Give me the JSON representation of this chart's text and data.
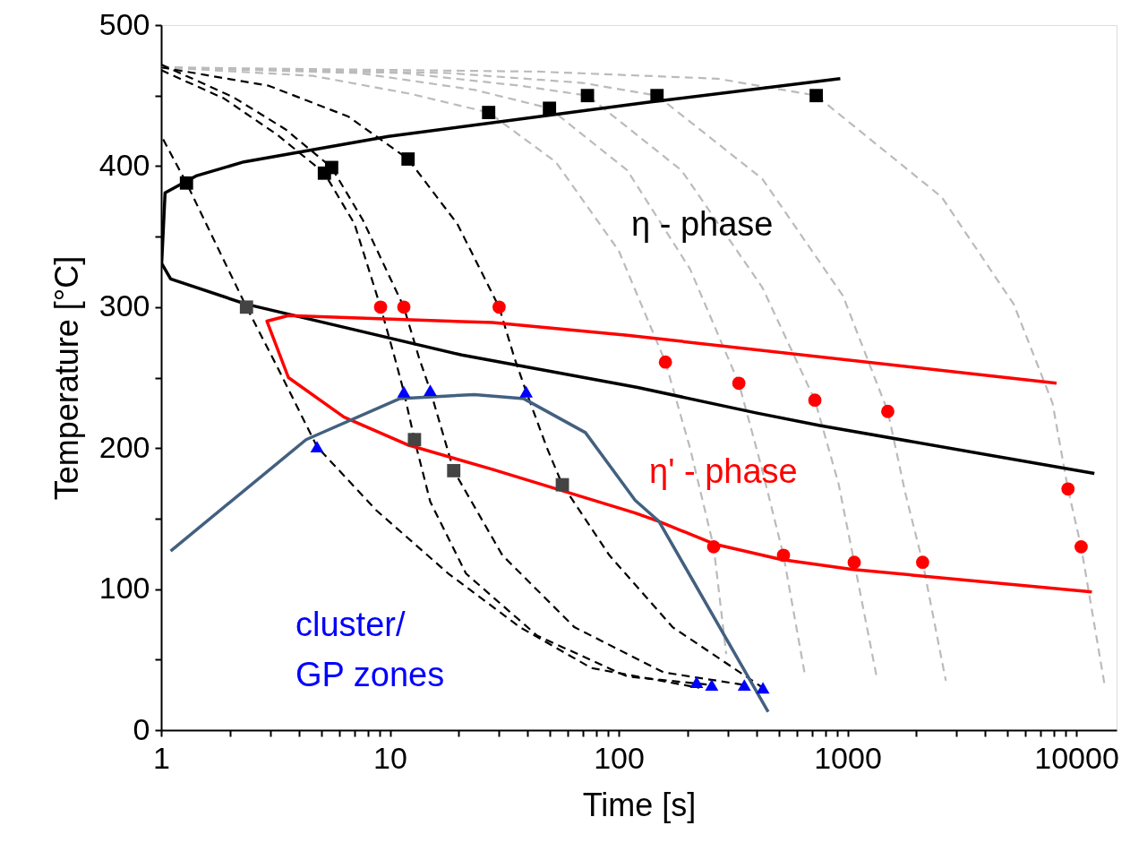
{
  "chart_data": {
    "type": "line",
    "xlabel": "Time [s]",
    "ylabel": "Temperature [°C]",
    "log": "x",
    "grid": false,
    "xlim": [
      1,
      15000
    ],
    "ylim": [
      0,
      500
    ],
    "xticks": [
      1,
      {
        "value": 2,
        "label": null
      },
      {
        "value": 3,
        "label": null
      },
      {
        "value": 4,
        "label": null
      },
      {
        "value": 5,
        "label": null
      },
      {
        "value": 6,
        "label": null
      },
      {
        "value": 7,
        "label": null
      },
      {
        "value": 8,
        "label": null
      },
      {
        "value": 9,
        "label": null
      },
      10,
      {
        "value": 20,
        "label": null
      },
      {
        "value": 30,
        "label": null
      },
      {
        "value": 40,
        "label": null
      },
      {
        "value": 50,
        "label": null
      },
      {
        "value": 60,
        "label": null
      },
      {
        "value": 70,
        "label": null
      },
      {
        "value": 80,
        "label": null
      },
      {
        "value": 90,
        "label": null
      },
      100,
      {
        "value": 200,
        "label": null
      },
      {
        "value": 300,
        "label": null
      },
      {
        "value": 400,
        "label": null
      },
      {
        "value": 500,
        "label": null
      },
      {
        "value": 600,
        "label": null
      },
      {
        "value": 700,
        "label": null
      },
      {
        "value": 800,
        "label": null
      },
      {
        "value": 900,
        "label": null
      },
      1000,
      {
        "value": 2000,
        "label": null
      },
      {
        "value": 3000,
        "label": null
      },
      {
        "value": 4000,
        "label": null
      },
      {
        "value": 5000,
        "label": null
      },
      {
        "value": 6000,
        "label": null
      },
      {
        "value": 7000,
        "label": null
      },
      {
        "value": 8000,
        "label": null
      },
      {
        "value": 9000,
        "label": null
      },
      10000
    ],
    "yticks": [
      0,
      {
        "value": 50,
        "label": null
      },
      100,
      {
        "value": 150,
        "label": null
      },
      200,
      {
        "value": 250,
        "label": null
      },
      300,
      {
        "value": 350,
        "label": null
      },
      400,
      {
        "value": 450,
        "label": null
      },
      500
    ],
    "annotations": [
      "η - phase",
      "η' - phase",
      "cluster/\nGP zones"
    ],
    "series": [
      {
        "color": "#bbbbbb",
        "line_style": "dashed",
        "x": [
          1,
          4.6,
          12.5,
          27,
          53,
          100,
          160,
          205,
          260,
          295
        ],
        "values": [
          470,
          464,
          451,
          438,
          403,
          340,
          261,
          200,
          130,
          54
        ]
      },
      {
        "color": "#bbbbbb",
        "line_style": "dashed",
        "x": [
          1,
          7.3,
          23.5,
          49.8,
          109,
          205,
          335,
          420,
          525,
          650
        ],
        "values": [
          470,
          466,
          454,
          441,
          397,
          327,
          246,
          187,
          124,
          40
        ]
      },
      {
        "color": "#bbbbbb",
        "line_style": "dashed",
        "x": [
          1,
          11.4,
          37,
          73,
          188,
          424,
          720,
          913,
          1070,
          1340
        ],
        "values": [
          470,
          466,
          457,
          450,
          397,
          314,
          234,
          175,
          119,
          38
        ]
      },
      {
        "color": "#bbbbbb",
        "line_style": "dashed",
        "x": [
          1,
          18,
          69.5,
          147,
          424,
          955,
          1500,
          1790,
          2130,
          2690
        ],
        "values": [
          470,
          466,
          459,
          450,
          391,
          308,
          226,
          168,
          119,
          35
        ]
      },
      {
        "color": "#bbbbbb",
        "line_style": "dashed",
        "x": [
          1,
          44.5,
          270,
          730,
          2580,
          5330,
          7870,
          9200,
          10500,
          13300
        ],
        "values": [
          470,
          467,
          462,
          450,
          378,
          302,
          232,
          171,
          130,
          32
        ]
      },
      {
        "color": "#000000",
        "line_style": "dashed",
        "x": [
          1.02,
          1.29,
          1.72,
          2.36,
          3.23,
          4.8,
          8.7,
          18,
          37,
          76,
          225
        ],
        "values": [
          419,
          388,
          346,
          300,
          257,
          201,
          156,
          111,
          73,
          44,
          30
        ]
      },
      {
        "color": "#000000",
        "line_style": "dashed",
        "x": [
          1,
          1.88,
          3.23,
          5.17,
          7,
          9.1,
          10.5,
          11.5,
          12.8,
          15,
          21.5,
          44,
          109,
          255
        ],
        "values": [
          468,
          448,
          422,
          395,
          359,
          300,
          264,
          240,
          206,
          162,
          111,
          67,
          38,
          32
        ]
      },
      {
        "color": "#000000",
        "line_style": "dashed",
        "x": [
          1,
          2.06,
          3.5,
          5.56,
          7.6,
          11.5,
          13.4,
          15,
          19,
          31,
          64,
          157,
          354
        ],
        "values": [
          472,
          449,
          426,
          399,
          362,
          300,
          264,
          241,
          184,
          124,
          73,
          41,
          32
        ]
      },
      {
        "color": "#000000",
        "line_style": "dashed",
        "x": [
          1,
          2.95,
          6.6,
          12,
          19.7,
          30,
          35,
          39.4,
          48.6,
          56.7,
          91,
          172,
          427
        ],
        "values": [
          470,
          457,
          435,
          405,
          359,
          300,
          264,
          240,
          200,
          174,
          124,
          73,
          30
        ]
      },
      {
        "color": "#000000",
        "line_style": "solid",
        "x": [
          930,
          131,
          9.85,
          2.3,
          1.42,
          1.04,
          1.005,
          1.1,
          2.36,
          20.6,
          121,
          398,
          757,
          12000
        ],
        "values": [
          462,
          445,
          421,
          403,
          393,
          381,
          331,
          320,
          302,
          266,
          243,
          225,
          216,
          182
        ]
      },
      {
        "color": "#ff0000",
        "line_style": "solid",
        "x": [
          8200,
          109,
          28,
          3.6,
          2.9,
          3.6,
          6.3,
          12.1,
          28,
          118,
          150,
          261,
          512,
          1040,
          11700
        ],
        "values": [
          246,
          280,
          289,
          294,
          290,
          250,
          222,
          202,
          185,
          154,
          148,
          132,
          121,
          114,
          98
        ]
      },
      {
        "color": "#43607f",
        "line_style": "solid",
        "x": [
          1.1,
          4.3,
          11,
          23.4,
          38.5,
          71.5,
          118,
          150,
          450
        ],
        "values": [
          127,
          206,
          235,
          238,
          235,
          211,
          163,
          148,
          13
        ]
      },
      {
        "type": "scatter",
        "color": "#000000",
        "marker": "square",
        "x": [
          1.29,
          5.17,
          5.56,
          12,
          27,
          49.8,
          73,
          147,
          730
        ],
        "values": [
          388,
          395,
          399,
          405,
          438,
          441,
          450,
          450,
          450
        ]
      },
      {
        "type": "scatter",
        "color": "#ff0000",
        "marker": "circle",
        "x": [
          9.1,
          11.5,
          30,
          160,
          335,
          720,
          1500,
          9200
        ],
        "values": [
          300,
          300,
          300,
          261,
          246,
          234,
          226,
          171
        ]
      },
      {
        "type": "scatter",
        "color": "#444444",
        "marker": "square",
        "x": [
          2.36,
          12.8,
          19,
          56.7
        ],
        "values": [
          300,
          206,
          184,
          174
        ]
      },
      {
        "type": "scatter",
        "color": "#ff0000",
        "marker": "circle",
        "x": [
          260,
          525,
          1070,
          2130,
          10500
        ],
        "values": [
          130,
          124,
          119,
          119,
          130
        ]
      },
      {
        "type": "scatter",
        "color": "#0000ff",
        "marker": "triangle",
        "x": [
          4.8,
          11.5,
          15,
          39.4
        ],
        "values": [
          201,
          240,
          241,
          240
        ]
      },
      {
        "type": "scatter",
        "color": "#0000ff",
        "marker": "triangle",
        "x": [
          219,
          255,
          354,
          427
        ],
        "values": [
          34,
          32,
          32,
          30
        ]
      }
    ]
  }
}
